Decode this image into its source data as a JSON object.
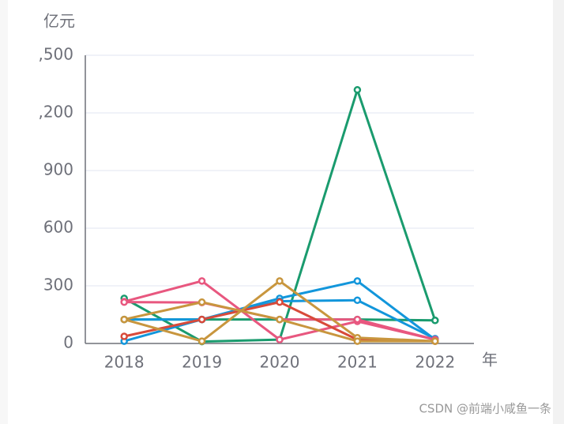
{
  "chart_data": {
    "type": "line",
    "y_axis_label": "亿元",
    "x_axis_label": "年",
    "watermark": "CSDN @前端小咸鱼一条",
    "categories": [
      "2018",
      "2019",
      "2020",
      "2021",
      "2022"
    ],
    "ylim": [
      0,
      1500
    ],
    "yticks": [
      0,
      300,
      600,
      900,
      {
        "value": 1200,
        "label": ",200"
      },
      {
        "value": 1500,
        "label": ",500"
      }
    ],
    "grid": true,
    "series": [
      {
        "color": "#1a9b6e",
        "values": [
          235,
          10,
          20,
          1320,
          120
        ]
      },
      {
        "color": "#1a9b6e",
        "values": [
          125,
          125,
          125,
          125,
          120
        ]
      },
      {
        "color": "#1296db",
        "values": [
          12,
          125,
          235,
          325,
          20
        ]
      },
      {
        "color": "#1296db",
        "values": [
          125,
          125,
          220,
          225,
          25
        ]
      },
      {
        "color": "#e8577f",
        "values": [
          218,
          325,
          20,
          115,
          20
        ]
      },
      {
        "color": "#e8577f",
        "values": [
          215,
          213,
          125,
          125,
          20
        ]
      },
      {
        "color": "#d84a3a",
        "values": [
          37,
          125,
          215,
          20,
          12
        ]
      },
      {
        "color": "#c8963e",
        "values": [
          125,
          12,
          325,
          30,
          12
        ]
      },
      {
        "color": "#c8963e",
        "values": [
          125,
          215,
          125,
          12,
          12
        ]
      }
    ]
  }
}
